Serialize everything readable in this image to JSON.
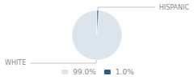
{
  "chart_data": {
    "type": "pie",
    "categories": [
      "WHITE",
      "HISPANIC"
    ],
    "values": [
      99.0,
      1.0
    ],
    "value_labels": [
      "99.0%",
      "1.0%"
    ],
    "colors": [
      "#dce4ec",
      "#2e5f7e"
    ],
    "legend": "bottom"
  }
}
